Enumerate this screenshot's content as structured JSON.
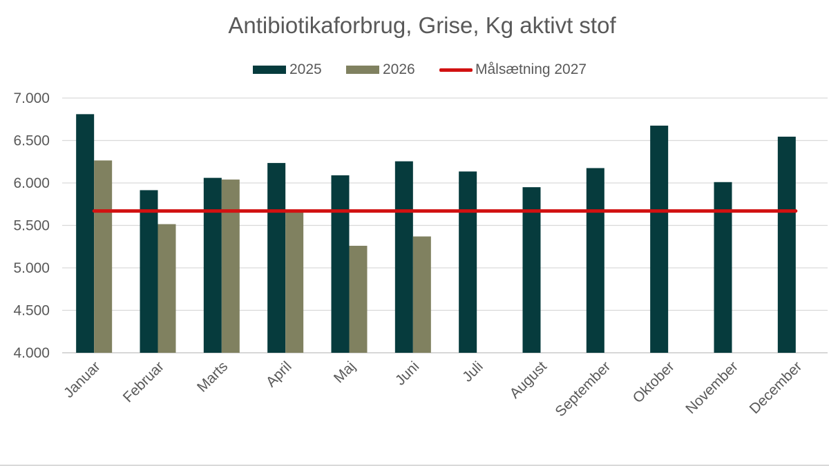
{
  "chart_data": {
    "type": "bar",
    "title": "Antibiotikaforbrug, Grise, Kg aktivt stof",
    "categories": [
      "Januar",
      "Februar",
      "Marts",
      "April",
      "Maj",
      "Juni",
      "Juli",
      "August",
      "September",
      "Oktober",
      "November",
      "December"
    ],
    "series": [
      {
        "name": "2025",
        "type": "bar",
        "color": "#063b3d",
        "values": [
          6810,
          5915,
          6060,
          6235,
          6090,
          6255,
          6135,
          5950,
          6175,
          6675,
          6010,
          6545
        ]
      },
      {
        "name": "2026",
        "type": "bar",
        "color": "#808160",
        "values": [
          6265,
          5515,
          6040,
          5680,
          5260,
          5370,
          null,
          null,
          null,
          null,
          null,
          null
        ]
      },
      {
        "name": "Målsætning 2027",
        "type": "line",
        "color": "#d11111",
        "values": [
          5670,
          5670,
          5670,
          5670,
          5670,
          5670,
          5670,
          5670,
          5670,
          5670,
          5670,
          5670
        ]
      }
    ],
    "ylim": [
      4000,
      7000
    ],
    "yticks": [
      4000,
      4500,
      5000,
      5500,
      6000,
      6500,
      7000
    ],
    "ytick_labels": [
      "4.000",
      "4.500",
      "5.000",
      "5.500",
      "6.000",
      "6.500",
      "7.000"
    ],
    "xlabel": "",
    "ylabel": "",
    "grid": true,
    "legend_position": "top"
  }
}
